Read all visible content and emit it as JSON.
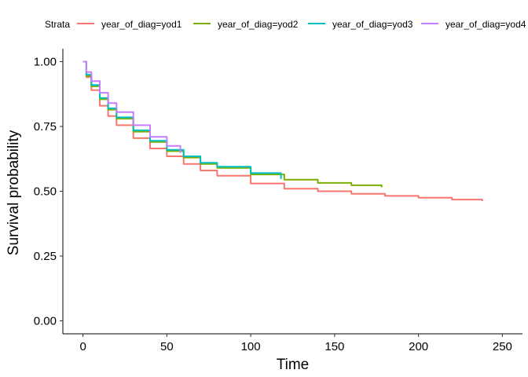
{
  "chart_data": {
    "type": "line",
    "subtype": "kaplan-meier survival step curves",
    "xlabel": "Time",
    "ylabel": "Survival probability",
    "xlim": [
      -12,
      262
    ],
    "ylim": [
      -0.05,
      1.05
    ],
    "x_ticks": [
      0,
      50,
      100,
      150,
      200,
      250
    ],
    "y_ticks": [
      0.0,
      0.25,
      0.5,
      0.75,
      1.0
    ],
    "y_tick_labels": [
      "0.00",
      "0.25",
      "0.50",
      "0.75",
      "1.00"
    ],
    "grid": false,
    "legend": {
      "title": "Strata",
      "position": "top",
      "entries": [
        "year_of_diag=yod1",
        "year_of_diag=yod2",
        "year_of_diag=yod3",
        "year_of_diag=yod4"
      ]
    },
    "series": [
      {
        "name": "year_of_diag=yod1",
        "color": "#F8766D",
        "points": [
          [
            0,
            1.0
          ],
          [
            2,
            0.94
          ],
          [
            5,
            0.89
          ],
          [
            10,
            0.83
          ],
          [
            15,
            0.79
          ],
          [
            20,
            0.755
          ],
          [
            30,
            0.705
          ],
          [
            40,
            0.665
          ],
          [
            50,
            0.635
          ],
          [
            60,
            0.605
          ],
          [
            70,
            0.58
          ],
          [
            80,
            0.56
          ],
          [
            100,
            0.53
          ],
          [
            120,
            0.51
          ],
          [
            140,
            0.5
          ],
          [
            160,
            0.49
          ],
          [
            180,
            0.482
          ],
          [
            200,
            0.475
          ],
          [
            220,
            0.468
          ],
          [
            238,
            0.462
          ]
        ]
      },
      {
        "name": "year_of_diag=yod2",
        "color": "#7CAE00",
        "points": [
          [
            0,
            1.0
          ],
          [
            2,
            0.945
          ],
          [
            5,
            0.905
          ],
          [
            10,
            0.855
          ],
          [
            15,
            0.815
          ],
          [
            20,
            0.78
          ],
          [
            30,
            0.73
          ],
          [
            40,
            0.69
          ],
          [
            50,
            0.655
          ],
          [
            60,
            0.63
          ],
          [
            70,
            0.605
          ],
          [
            80,
            0.59
          ],
          [
            100,
            0.565
          ],
          [
            120,
            0.545
          ],
          [
            140,
            0.532
          ],
          [
            160,
            0.523
          ],
          [
            178,
            0.515
          ]
        ]
      },
      {
        "name": "year_of_diag=yod3",
        "color": "#00BFC4",
        "points": [
          [
            0,
            1.0
          ],
          [
            2,
            0.95
          ],
          [
            5,
            0.91
          ],
          [
            10,
            0.86
          ],
          [
            15,
            0.82
          ],
          [
            20,
            0.785
          ],
          [
            30,
            0.735
          ],
          [
            40,
            0.695
          ],
          [
            50,
            0.66
          ],
          [
            60,
            0.635
          ],
          [
            70,
            0.61
          ],
          [
            80,
            0.595
          ],
          [
            100,
            0.57
          ],
          [
            118,
            0.548
          ]
        ]
      },
      {
        "name": "year_of_diag=yod4",
        "color": "#C77CFF",
        "points": [
          [
            0,
            1.0
          ],
          [
            2,
            0.96
          ],
          [
            5,
            0.925
          ],
          [
            10,
            0.88
          ],
          [
            15,
            0.84
          ],
          [
            20,
            0.805
          ],
          [
            30,
            0.755
          ],
          [
            40,
            0.71
          ],
          [
            50,
            0.675
          ],
          [
            58,
            0.648
          ]
        ]
      }
    ]
  }
}
